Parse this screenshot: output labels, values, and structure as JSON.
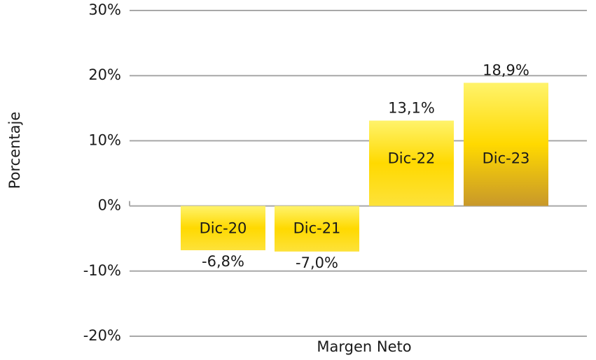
{
  "chart_data": {
    "type": "bar",
    "x_label": "Margen Neto",
    "y_label": "Porcentaje",
    "categories": [
      "Dic-20",
      "Dic-21",
      "Dic-22",
      "Dic-23"
    ],
    "values": [
      -6.8,
      -7.0,
      13.1,
      18.9
    ],
    "value_labels": [
      "-6,8%",
      "-7,0%",
      "13,1%",
      "18,9%"
    ],
    "colors": [
      "#fde23a",
      "#fde23a",
      "#fde23a",
      "#c8982a"
    ],
    "ylim": [
      -20,
      30
    ],
    "yticks": [
      {
        "value": -20,
        "label": "-20%"
      },
      {
        "value": -10,
        "label": "-10%"
      },
      {
        "value": 0,
        "label": "0%"
      },
      {
        "value": 10,
        "label": "10%"
      },
      {
        "value": 20,
        "label": "20%"
      },
      {
        "value": 30,
        "label": "30%"
      }
    ],
    "grid": true
  }
}
